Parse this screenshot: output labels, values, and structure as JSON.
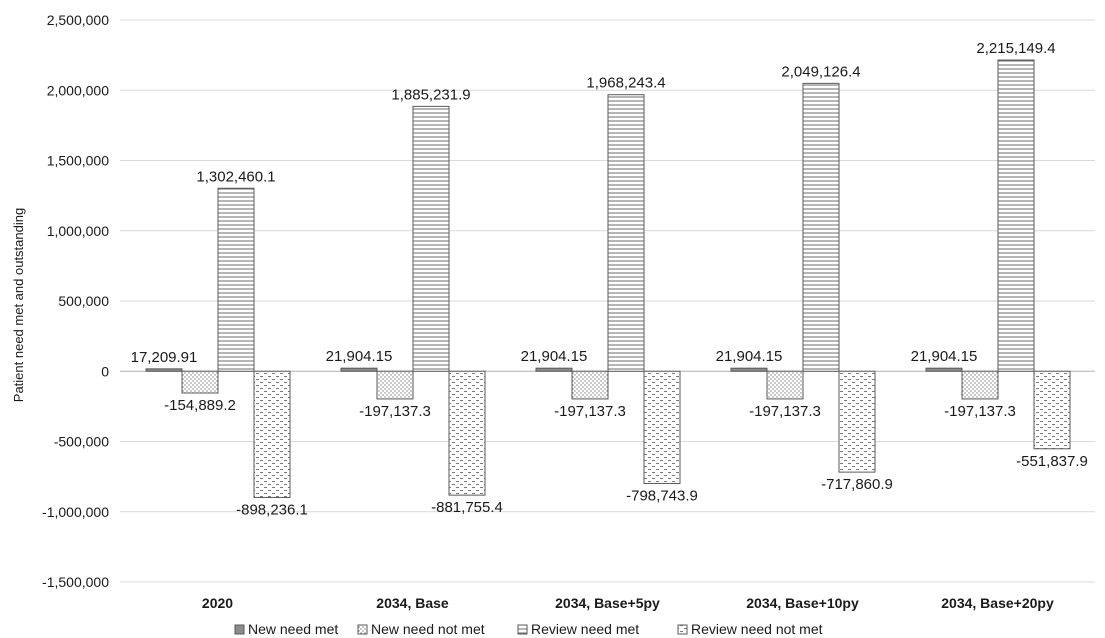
{
  "chart_data": {
    "type": "bar",
    "title": "",
    "xlabel": "",
    "ylabel": "Patient need met and outstanding",
    "ylim": [
      -1500000,
      2500000
    ],
    "yticks": [
      -1500000,
      -1000000,
      -500000,
      0,
      500000,
      1000000,
      1500000,
      2000000,
      2500000
    ],
    "ytick_labels": [
      "-1,500,000",
      "-1,000,000",
      "-500,000",
      "0",
      "500,000",
      "1,000,000",
      "1,500,000",
      "2,000,000",
      "2,500,000"
    ],
    "grid": true,
    "legend_position": "bottom",
    "categories": [
      "2020",
      "2034, Base",
      "2034, Base+5py",
      "2034, Base+10py",
      "2034, Base+20py"
    ],
    "series": [
      {
        "name": "New need met",
        "pattern": "solid-gray",
        "values": [
          17209.91,
          21904.15,
          21904.15,
          21904.15,
          21904.15
        ],
        "labels": [
          "17,209.91",
          "21,904.15",
          "21,904.15",
          "21,904.15",
          "21,904.15"
        ]
      },
      {
        "name": "New need not met",
        "pattern": "dots",
        "values": [
          -154889.2,
          -197137.3,
          -197137.3,
          -197137.3,
          -197137.3
        ],
        "labels": [
          "-154,889.2",
          "-197,137.3",
          "-197,137.3",
          "-197,137.3",
          "-197,137.3"
        ]
      },
      {
        "name": "Review need met",
        "pattern": "horizontal-lines",
        "values": [
          1302460.1,
          1885231.9,
          1968243.4,
          2049126.4,
          2215149.4
        ],
        "labels": [
          "1,302,460.1",
          "1,885,231.9",
          "1,968,243.4",
          "2,049,126.4",
          "2,215,149.4"
        ]
      },
      {
        "name": "Review need not met",
        "pattern": "dashes",
        "values": [
          -898236.1,
          -881755.4,
          -798743.9,
          -717860.9,
          -551837.9
        ],
        "labels": [
          "-898,236.1",
          "-881,755.4",
          "-798,743.9",
          "-717,860.9",
          "-551,837.9"
        ]
      }
    ],
    "colors": {
      "solid": "#8c8c8c",
      "pattern_stroke": "#6e6e6e",
      "outline": "#595959"
    }
  }
}
